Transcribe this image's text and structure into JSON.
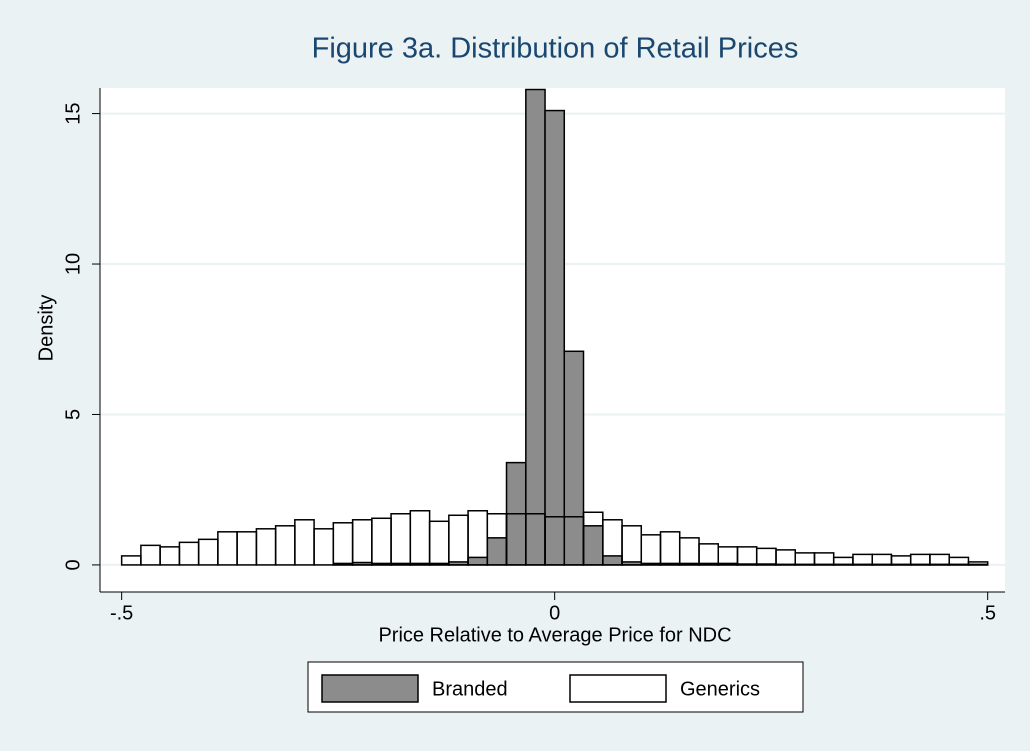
{
  "chart_data": {
    "type": "histogram",
    "title": "Figure 3a. Distribution of Retail Prices",
    "x_label": "Price Relative to Average Price for NDC",
    "y_label": "Density",
    "bins": [
      -0.5,
      -0.4778,
      -0.4556,
      -0.4333,
      -0.4111,
      -0.3889,
      -0.3667,
      -0.3444,
      -0.3222,
      -0.3,
      -0.2778,
      -0.2556,
      -0.2333,
      -0.2111,
      -0.1889,
      -0.1667,
      -0.1444,
      -0.1222,
      -0.1,
      -0.0778,
      -0.0556,
      -0.0333,
      -0.0111,
      0.0111,
      0.0333,
      0.0556,
      0.0778,
      0.1,
      0.1222,
      0.1444,
      0.1667,
      0.1889,
      0.2111,
      0.2333,
      0.2556,
      0.2778,
      0.3,
      0.3222,
      0.3444,
      0.3667,
      0.3889,
      0.4111,
      0.4333,
      0.4556,
      0.4778,
      0.5
    ],
    "series": [
      {
        "name": "Branded",
        "color": "#8c8c8c",
        "values": [
          0,
          0,
          0,
          0,
          0,
          0,
          0,
          0,
          0,
          0,
          0,
          0.05,
          0.08,
          0.05,
          0.05,
          0.05,
          0.05,
          0.1,
          0.25,
          0.9,
          3.4,
          15.8,
          15.1,
          7.1,
          1.3,
          0.3,
          0.1,
          0.05,
          0.05,
          0.05,
          0.05,
          0.05,
          0.03,
          0.03,
          0.02,
          0.02,
          0.02,
          0.02,
          0.02,
          0.02,
          0.02,
          0.02,
          0.02,
          0.02,
          0.02
        ]
      },
      {
        "name": "Generics",
        "color": "#ffffff",
        "values": [
          0.3,
          0.65,
          0.6,
          0.75,
          0.85,
          1.1,
          1.1,
          1.2,
          1.3,
          1.5,
          1.2,
          1.4,
          1.5,
          1.55,
          1.7,
          1.8,
          1.45,
          1.65,
          1.8,
          1.7,
          1.7,
          1.7,
          1.6,
          1.6,
          1.75,
          1.5,
          1.3,
          1.0,
          1.1,
          0.9,
          0.7,
          0.6,
          0.6,
          0.55,
          0.5,
          0.4,
          0.4,
          0.25,
          0.35,
          0.35,
          0.3,
          0.35,
          0.35,
          0.25,
          0.1
        ]
      }
    ],
    "xlim": [
      -0.525,
      0.52
    ],
    "xticks": [
      {
        "value": -0.5,
        "label": "-.5"
      },
      0,
      {
        "value": 0.5,
        "label": ".5"
      }
    ],
    "ylim": [
      -0.9,
      15.85
    ],
    "yticks": [
      0,
      5,
      10,
      15
    ],
    "grid": true
  }
}
